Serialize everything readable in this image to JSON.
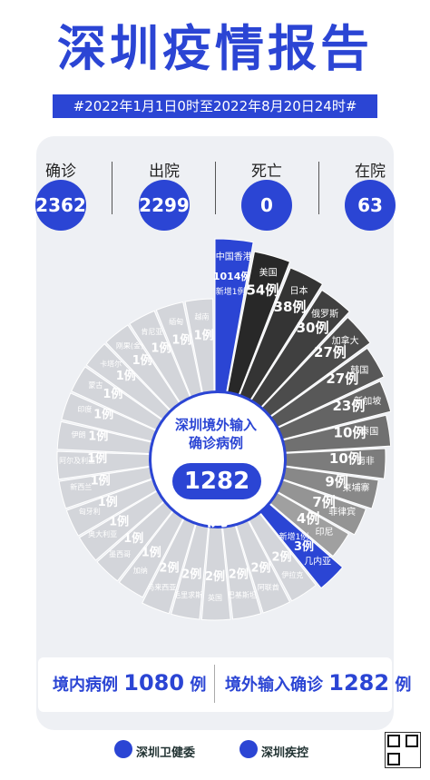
{
  "title": "深圳疫情报告",
  "date_range": "#2022年1月1日0时至2022年8月20日24时#",
  "stats": [
    {
      "label": "确诊",
      "value": "2362"
    },
    {
      "label": "出院",
      "value": "2299"
    },
    {
      "label": "死亡",
      "value": "0"
    },
    {
      "label": "在院",
      "value": "63"
    }
  ],
  "center": {
    "line1": "深圳境外输入",
    "line2": "确诊病例",
    "value": "1282例"
  },
  "segments": [
    {
      "name": "中国香港",
      "value": "1014例",
      "note": "新增1例",
      "highlight": true
    },
    {
      "name": "美国",
      "value": "54例"
    },
    {
      "name": "日本",
      "value": "38例"
    },
    {
      "name": "俄罗斯",
      "value": "30例"
    },
    {
      "name": "加拿大",
      "value": "27例"
    },
    {
      "name": "韩国",
      "value": "27例"
    },
    {
      "name": "新加坡",
      "value": "23例"
    },
    {
      "name": "泰国",
      "value": "10例"
    },
    {
      "name": "南非",
      "value": "10例"
    },
    {
      "name": "柬埔寨",
      "value": "9例"
    },
    {
      "name": "菲律宾",
      "value": "7例"
    },
    {
      "name": "印尼",
      "value": "4例"
    },
    {
      "name": "几内亚",
      "value": "3例",
      "note": "新增1例",
      "highlight": true
    },
    {
      "name": "伊拉克",
      "value": "2例"
    },
    {
      "name": "阿联酋",
      "value": "2例"
    },
    {
      "name": "巴基斯坦",
      "value": "2例"
    },
    {
      "name": "英国",
      "value": "2例"
    },
    {
      "name": "毛里求斯",
      "value": "2例"
    },
    {
      "name": "马来西亚",
      "value": "2例"
    },
    {
      "name": "加纳",
      "value": "1例"
    },
    {
      "name": "墨西哥",
      "value": "1例"
    },
    {
      "name": "奥大利亚",
      "value": "1例"
    },
    {
      "name": "匈牙利",
      "value": "1例"
    },
    {
      "name": "新西兰",
      "value": "1例"
    },
    {
      "name": "阿尔及利亚",
      "value": "1例"
    },
    {
      "name": "伊朗",
      "value": "1例"
    },
    {
      "name": "印度",
      "value": "1例"
    },
    {
      "name": "蒙古",
      "value": "1例"
    },
    {
      "name": "卡塔尔",
      "value": "1例"
    },
    {
      "name": "刚果(金)",
      "value": "1例"
    },
    {
      "name": "肯尼亚",
      "value": "1例"
    },
    {
      "name": "缅甸",
      "value": "1例"
    },
    {
      "name": "越南",
      "value": "1例"
    }
  ],
  "bottom": {
    "local_label": "境内病例",
    "local_value": "1080",
    "local_unit": "例",
    "imported_label": "境外输入确诊",
    "imported_value": "1282",
    "imported_unit": "例"
  },
  "footer": {
    "org1": "深圳卫健委",
    "org2": "深圳疾控"
  },
  "colors": {
    "accent": "#2b45d4",
    "background": "#ffffff",
    "card": "#eef0f4"
  }
}
